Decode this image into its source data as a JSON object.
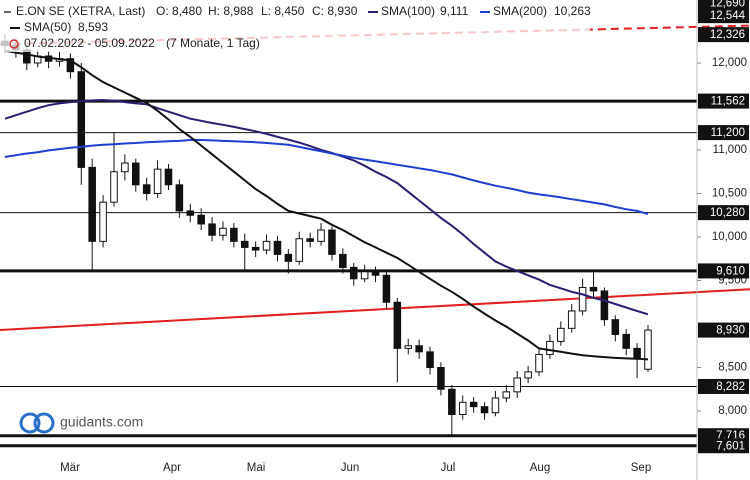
{
  "chart_data": {
    "type": "candlestick",
    "title": "E.ON SE (XETRA, Last)",
    "ohlc_labels": [
      "O: 8,480",
      "H: 8,988",
      "L: 8,450",
      "C: 8,930"
    ],
    "period": "07.02.2022 - 05.09.2022",
    "period_note": "(7 Monate, 1 Tag)",
    "watermark": "guidants.com",
    "months": [
      "Mär",
      "Apr",
      "Mai",
      "Jun",
      "Jul",
      "Aug",
      "Sep"
    ],
    "ylim": [
      7207,
      12724
    ],
    "yticks": [
      {
        "value": 12000,
        "label": "12,000"
      },
      {
        "value": 11000,
        "label": "11,000"
      },
      {
        "value": 10500,
        "label": "10,500"
      },
      {
        "value": 10000,
        "label": "10,000"
      },
      {
        "value": 9500,
        "label": "9,500"
      },
      {
        "value": 8500,
        "label": "8,500"
      },
      {
        "value": 8000,
        "label": "8,000"
      }
    ],
    "up_color": "#ffffff",
    "down_color": "#111111",
    "candles": [
      {
        "o": 12250,
        "h": 12330,
        "l": 12120,
        "c": 12200
      },
      {
        "o": 12200,
        "h": 12280,
        "l": 12060,
        "c": 12150
      },
      {
        "o": 12150,
        "h": 12210,
        "l": 11920,
        "c": 12000
      },
      {
        "o": 12000,
        "h": 12160,
        "l": 11950,
        "c": 12080
      },
      {
        "o": 12080,
        "h": 12140,
        "l": 11940,
        "c": 12020
      },
      {
        "o": 12020,
        "h": 12130,
        "l": 11960,
        "c": 12050
      },
      {
        "o": 12050,
        "h": 12110,
        "l": 11820,
        "c": 11900
      },
      {
        "o": 11900,
        "h": 12000,
        "l": 10600,
        "c": 10800
      },
      {
        "o": 10800,
        "h": 10900,
        "l": 9600,
        "c": 9950
      },
      {
        "o": 9950,
        "h": 10480,
        "l": 9880,
        "c": 10400
      },
      {
        "o": 10400,
        "h": 11200,
        "l": 10350,
        "c": 10750
      },
      {
        "o": 10750,
        "h": 10950,
        "l": 10650,
        "c": 10850
      },
      {
        "o": 10850,
        "h": 10900,
        "l": 10520,
        "c": 10600
      },
      {
        "o": 10600,
        "h": 10680,
        "l": 10420,
        "c": 10500
      },
      {
        "o": 10500,
        "h": 10880,
        "l": 10450,
        "c": 10780
      },
      {
        "o": 10780,
        "h": 10840,
        "l": 10540,
        "c": 10600
      },
      {
        "o": 10600,
        "h": 10660,
        "l": 10220,
        "c": 10300
      },
      {
        "o": 10300,
        "h": 10380,
        "l": 10170,
        "c": 10250
      },
      {
        "o": 10250,
        "h": 10330,
        "l": 10080,
        "c": 10150
      },
      {
        "o": 10150,
        "h": 10230,
        "l": 9950,
        "c": 10020
      },
      {
        "o": 10020,
        "h": 10180,
        "l": 9960,
        "c": 10100
      },
      {
        "o": 10100,
        "h": 10160,
        "l": 9880,
        "c": 9950
      },
      {
        "o": 9950,
        "h": 10040,
        "l": 9620,
        "c": 9880
      },
      {
        "o": 9880,
        "h": 9950,
        "l": 9770,
        "c": 9850
      },
      {
        "o": 9850,
        "h": 10030,
        "l": 9800,
        "c": 9950
      },
      {
        "o": 9950,
        "h": 10010,
        "l": 9720,
        "c": 9800
      },
      {
        "o": 9800,
        "h": 9860,
        "l": 9580,
        "c": 9720
      },
      {
        "o": 9720,
        "h": 10060,
        "l": 9680,
        "c": 9980
      },
      {
        "o": 9980,
        "h": 10050,
        "l": 9880,
        "c": 9950
      },
      {
        "o": 9950,
        "h": 10160,
        "l": 9900,
        "c": 10080
      },
      {
        "o": 10080,
        "h": 10120,
        "l": 9730,
        "c": 9800
      },
      {
        "o": 9800,
        "h": 9870,
        "l": 9580,
        "c": 9650
      },
      {
        "o": 9650,
        "h": 9700,
        "l": 9440,
        "c": 9520
      },
      {
        "o": 9520,
        "h": 9680,
        "l": 9480,
        "c": 9600
      },
      {
        "o": 9600,
        "h": 9660,
        "l": 9480,
        "c": 9560
      },
      {
        "o": 9560,
        "h": 9600,
        "l": 9170,
        "c": 9250
      },
      {
        "o": 9250,
        "h": 9300,
        "l": 8330,
        "c": 8720
      },
      {
        "o": 8720,
        "h": 8830,
        "l": 8650,
        "c": 8750
      },
      {
        "o": 8750,
        "h": 8820,
        "l": 8600,
        "c": 8680
      },
      {
        "o": 8680,
        "h": 8740,
        "l": 8420,
        "c": 8500
      },
      {
        "o": 8500,
        "h": 8560,
        "l": 8180,
        "c": 8250
      },
      {
        "o": 8250,
        "h": 8300,
        "l": 7716,
        "c": 7960
      },
      {
        "o": 7960,
        "h": 8180,
        "l": 7900,
        "c": 8100
      },
      {
        "o": 8100,
        "h": 8160,
        "l": 7980,
        "c": 8050
      },
      {
        "o": 8050,
        "h": 8100,
        "l": 7900,
        "c": 7980
      },
      {
        "o": 7980,
        "h": 8230,
        "l": 7940,
        "c": 8150
      },
      {
        "o": 8150,
        "h": 8300,
        "l": 8100,
        "c": 8220
      },
      {
        "o": 8220,
        "h": 8460,
        "l": 8150,
        "c": 8380
      },
      {
        "o": 8380,
        "h": 8520,
        "l": 8320,
        "c": 8450
      },
      {
        "o": 8450,
        "h": 8720,
        "l": 8400,
        "c": 8650
      },
      {
        "o": 8650,
        "h": 8880,
        "l": 8600,
        "c": 8800
      },
      {
        "o": 8800,
        "h": 9030,
        "l": 8750,
        "c": 8950
      },
      {
        "o": 8950,
        "h": 9230,
        "l": 8900,
        "c": 9150
      },
      {
        "o": 9150,
        "h": 9520,
        "l": 9100,
        "c": 9420
      },
      {
        "o": 9420,
        "h": 9600,
        "l": 9300,
        "c": 9380
      },
      {
        "o": 9380,
        "h": 9420,
        "l": 8980,
        "c": 9050
      },
      {
        "o": 9050,
        "h": 9100,
        "l": 8800,
        "c": 8880
      },
      {
        "o": 8880,
        "h": 8940,
        "l": 8640,
        "c": 8720
      },
      {
        "o": 8720,
        "h": 8780,
        "l": 8380,
        "c": 8600
      },
      {
        "o": 8480,
        "h": 8988,
        "l": 8450,
        "c": 8930
      }
    ],
    "series": [
      {
        "name": "SMA(100)",
        "value_label": "9,111",
        "color": "#2b1d72",
        "values": [
          11360,
          11400,
          11440,
          11480,
          11515,
          11535,
          11550,
          11560,
          11570,
          11575,
          11565,
          11550,
          11535,
          11525,
          11480,
          11440,
          11400,
          11360,
          11335,
          11310,
          11290,
          11265,
          11240,
          11215,
          11185,
          11150,
          11120,
          11085,
          11045,
          11000,
          10965,
          10925,
          10880,
          10820,
          10750,
          10690,
          10620,
          10520,
          10420,
          10320,
          10220,
          10130,
          10030,
          9920,
          9820,
          9720,
          9660,
          9610,
          9560,
          9510,
          9450,
          9410,
          9370,
          9340,
          9300,
          9270,
          9230,
          9190,
          9150,
          9111
        ]
      },
      {
        "name": "SMA(200)",
        "value_label": "10,263",
        "color": "#1f3fd0",
        "values": [
          10920,
          10940,
          10960,
          10975,
          10995,
          11010,
          11025,
          11035,
          11050,
          11060,
          11065,
          11075,
          11080,
          11090,
          11095,
          11100,
          11105,
          11115,
          11115,
          11110,
          11105,
          11100,
          11095,
          11090,
          11080,
          11070,
          11060,
          11035,
          11010,
          10985,
          10960,
          10935,
          10910,
          10890,
          10870,
          10850,
          10830,
          10810,
          10790,
          10770,
          10745,
          10720,
          10685,
          10650,
          10620,
          10590,
          10565,
          10540,
          10510,
          10490,
          10475,
          10455,
          10435,
          10415,
          10395,
          10375,
          10345,
          10320,
          10300,
          10263
        ]
      },
      {
        "name": "SMA(50)",
        "value_label": "8,593",
        "color": "#111111",
        "values": [
          12140,
          12120,
          12100,
          12075,
          12060,
          12045,
          12030,
          11950,
          11860,
          11780,
          11720,
          11660,
          11600,
          11540,
          11450,
          11350,
          11240,
          11150,
          11050,
          10950,
          10850,
          10750,
          10650,
          10550,
          10470,
          10380,
          10300,
          10270,
          10240,
          10210,
          10140,
          10080,
          10010,
          9940,
          9880,
          9820,
          9760,
          9680,
          9600,
          9520,
          9440,
          9370,
          9290,
          9200,
          9120,
          9040,
          8970,
          8890,
          8810,
          8720,
          8700,
          8680,
          8660,
          8640,
          8630,
          8620,
          8610,
          8605,
          8600,
          8593
        ]
      }
    ],
    "levels": [
      {
        "value": 12690,
        "label": "12,690",
        "line": "none"
      },
      {
        "value": 12544,
        "label": "12,544",
        "line": "none"
      },
      {
        "value": 12326,
        "label": "12,326",
        "line": "none"
      },
      {
        "value": 11562,
        "label": "11,562",
        "line": "thick"
      },
      {
        "value": 11200,
        "label": "11,200",
        "line": "thin"
      },
      {
        "value": 10280,
        "label": "10,280",
        "line": "thin"
      },
      {
        "value": 9610,
        "label": "9,610",
        "line": "thick"
      },
      {
        "value": 8930,
        "label": "8,930",
        "line": "none"
      },
      {
        "value": 8282,
        "label": "8,282",
        "line": "thin"
      },
      {
        "value": 7716,
        "label": "7,716",
        "line": "thick"
      },
      {
        "value": 7601,
        "label": "7,601",
        "line": "thick"
      }
    ],
    "trendlines": [
      {
        "start": 12218,
        "end": 12430,
        "color": "#e02020",
        "dashed": true
      },
      {
        "start": 8931,
        "end": 9400,
        "color": "#e02020",
        "dashed": false
      }
    ]
  }
}
